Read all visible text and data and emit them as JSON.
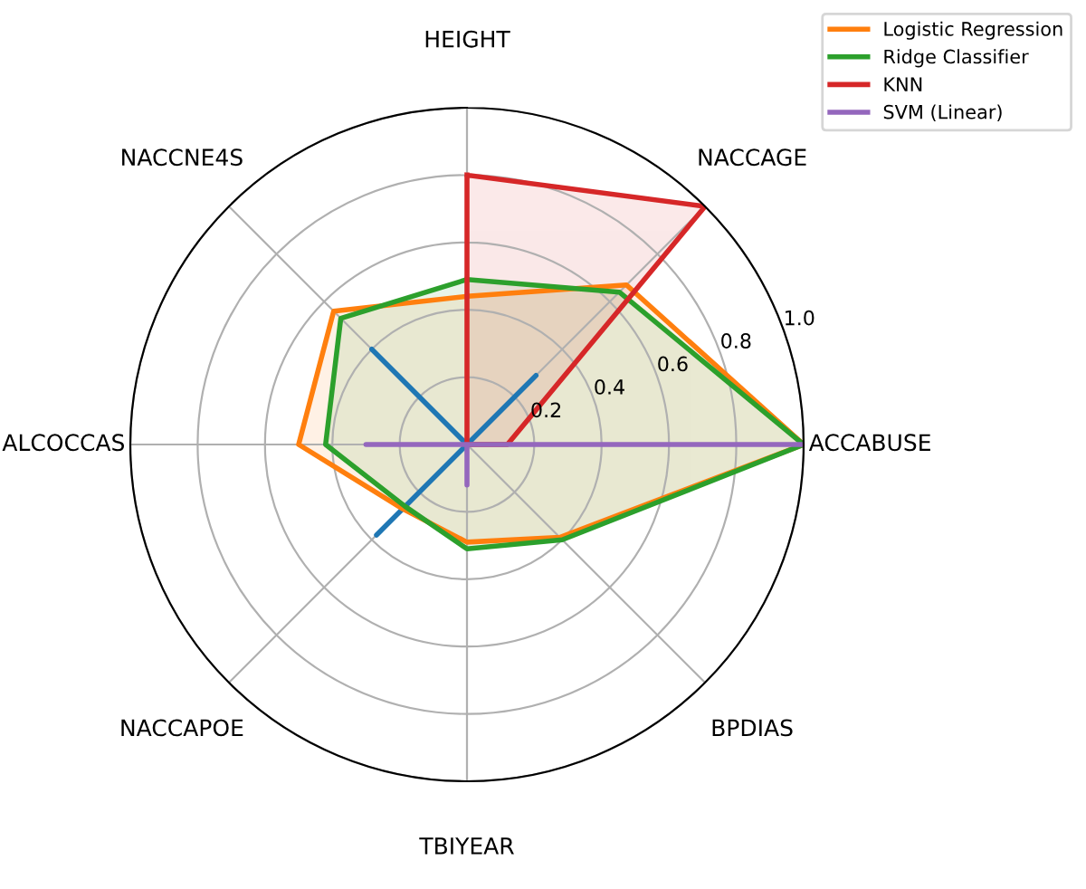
{
  "chart_data": {
    "type": "radar",
    "categories": [
      "HEIGHT",
      "NACCAGE",
      "ACCABUSE",
      "BPDIAS",
      "TBIYEAR",
      "NACCAPOE",
      "ALCOCCAS",
      "NACCNE4S"
    ],
    "series": [
      {
        "color": "#1f77b4",
        "values": [
          0,
          0.29,
          0,
          0,
          0,
          0.38,
          0,
          0.4
        ]
      },
      {
        "name": "Logistic Regression",
        "color": "#ff7f0e",
        "values": [
          0.44,
          0.67,
          1.0,
          0.39,
          0.29,
          0.27,
          0.5,
          0.56
        ]
      },
      {
        "name": "Ridge Classifier",
        "color": "#2ca02c",
        "values": [
          0.49,
          0.64,
          1.0,
          0.4,
          0.31,
          0.26,
          0.42,
          0.53
        ]
      },
      {
        "name": "KNN",
        "color": "#d62728",
        "values": [
          0.8,
          1.0,
          0.12,
          0,
          0,
          0,
          0,
          0
        ]
      },
      {
        "name": "SVM (Linear)",
        "color": "#9467bd",
        "values": [
          0,
          0,
          1.0,
          0,
          0.12,
          0,
          0.3,
          0
        ]
      }
    ],
    "ylim": [
      0,
      1.0
    ],
    "yticks": [
      0.2,
      0.4,
      0.6,
      0.8,
      {
        "value": 1,
        "label": "1.0"
      }
    ],
    "grid": true,
    "legend": "top right"
  }
}
